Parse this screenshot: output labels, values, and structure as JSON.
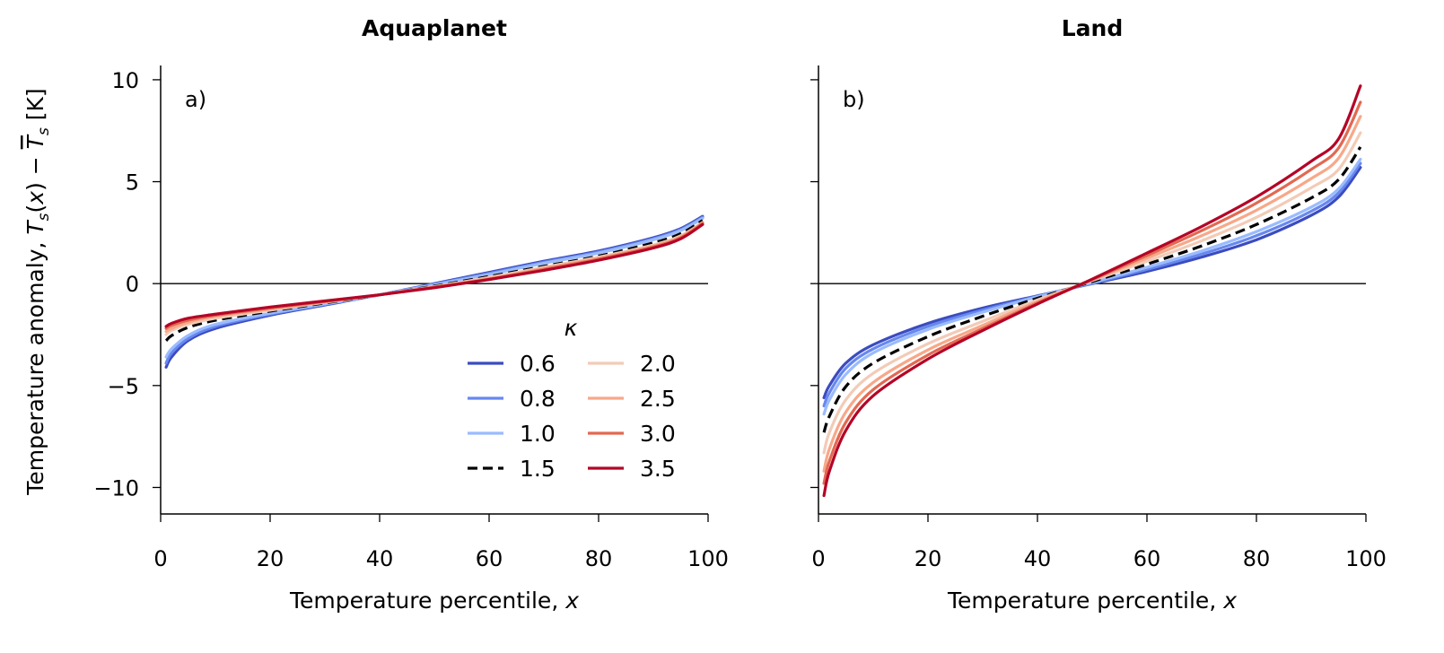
{
  "chart_data": [
    {
      "type": "line",
      "title": "Aquaplanet",
      "panel_label": "a)",
      "xlabel": "Temperature percentile, ",
      "xlabel_var": "x",
      "ylabel": "Temperature anomaly, T_s(x) − T̄_s [K]",
      "xlim": [
        0,
        100
      ],
      "ylim": [
        -11.3,
        10.7
      ],
      "xticks": [
        0,
        20,
        40,
        60,
        80,
        100
      ],
      "xtick_labels": [
        "0",
        "20",
        "40",
        "60",
        "80",
        "100"
      ],
      "yticks": [
        10,
        5,
        0,
        -5,
        -10
      ],
      "ytick_labels": [
        "10",
        "5",
        "0",
        "−5",
        "−10"
      ],
      "x": [
        1,
        2,
        5,
        10,
        20,
        30,
        40,
        50,
        60,
        70,
        80,
        90,
        95,
        99
      ],
      "series": [
        {
          "name": "0.6",
          "color": "#3b4cc0",
          "dash": false,
          "values": [
            -4.1,
            -3.6,
            -2.8,
            -2.2,
            -1.55,
            -1.05,
            -0.55,
            0.0,
            0.55,
            1.1,
            1.6,
            2.25,
            2.7,
            3.3
          ]
        },
        {
          "name": "0.8",
          "color": "#6788ee",
          "dash": false,
          "values": [
            -3.9,
            -3.4,
            -2.7,
            -2.1,
            -1.5,
            -1.02,
            -0.55,
            -0.03,
            0.5,
            1.05,
            1.55,
            2.2,
            2.65,
            3.25
          ]
        },
        {
          "name": "1.0",
          "color": "#9abbff",
          "dash": false,
          "values": [
            -3.6,
            -3.2,
            -2.55,
            -2.0,
            -1.45,
            -1.0,
            -0.55,
            -0.06,
            0.45,
            1.0,
            1.5,
            2.15,
            2.6,
            3.2
          ]
        },
        {
          "name": "1.5",
          "color": "#000000",
          "dash": true,
          "values": [
            -2.8,
            -2.55,
            -2.15,
            -1.8,
            -1.35,
            -0.95,
            -0.55,
            -0.12,
            0.35,
            0.85,
            1.35,
            2.0,
            2.45,
            3.1
          ]
        },
        {
          "name": "2.0",
          "color": "#f2cbb7",
          "dash": false,
          "values": [
            -2.5,
            -2.3,
            -2.0,
            -1.7,
            -1.3,
            -0.92,
            -0.55,
            -0.15,
            0.3,
            0.8,
            1.3,
            1.9,
            2.35,
            3.0
          ]
        },
        {
          "name": "2.5",
          "color": "#f7a889",
          "dash": false,
          "values": [
            -2.35,
            -2.2,
            -1.9,
            -1.6,
            -1.25,
            -0.9,
            -0.55,
            -0.17,
            0.25,
            0.75,
            1.25,
            1.85,
            2.3,
            3.0
          ]
        },
        {
          "name": "3.0",
          "color": "#e26952",
          "dash": false,
          "values": [
            -2.2,
            -2.05,
            -1.8,
            -1.55,
            -1.2,
            -0.88,
            -0.55,
            -0.18,
            0.22,
            0.7,
            1.2,
            1.8,
            2.25,
            2.95
          ]
        },
        {
          "name": "3.5",
          "color": "#b40426",
          "dash": false,
          "values": [
            -2.1,
            -1.95,
            -1.7,
            -1.5,
            -1.15,
            -0.85,
            -0.55,
            -0.2,
            0.2,
            0.65,
            1.15,
            1.75,
            2.2,
            2.9
          ]
        }
      ]
    },
    {
      "type": "line",
      "title": "Land",
      "panel_label": "b)",
      "xlabel": "Temperature percentile, ",
      "xlabel_var": "x",
      "xlim": [
        0,
        100
      ],
      "ylim": [
        -11.3,
        10.7
      ],
      "xticks": [
        0,
        20,
        40,
        60,
        80,
        100
      ],
      "xtick_labels": [
        "0",
        "20",
        "40",
        "60",
        "80",
        "100"
      ],
      "yticks": [
        10,
        5,
        0,
        -5,
        -10
      ],
      "x": [
        1,
        2,
        5,
        10,
        20,
        30,
        40,
        50,
        60,
        70,
        80,
        90,
        95,
        99
      ],
      "series": [
        {
          "name": "0.6",
          "color": "#3b4cc0",
          "dash": false,
          "values": [
            -5.6,
            -5.0,
            -3.9,
            -3.0,
            -1.95,
            -1.2,
            -0.6,
            0.0,
            0.6,
            1.3,
            2.15,
            3.35,
            4.25,
            5.7
          ]
        },
        {
          "name": "0.8",
          "color": "#6788ee",
          "dash": false,
          "values": [
            -6.0,
            -5.35,
            -4.15,
            -3.2,
            -2.1,
            -1.3,
            -0.62,
            0.02,
            0.7,
            1.45,
            2.35,
            3.55,
            4.45,
            5.9
          ]
        },
        {
          "name": "1.0",
          "color": "#9abbff",
          "dash": false,
          "values": [
            -6.4,
            -5.7,
            -4.45,
            -3.4,
            -2.25,
            -1.4,
            -0.65,
            0.05,
            0.8,
            1.6,
            2.55,
            3.75,
            4.65,
            6.1
          ]
        },
        {
          "name": "1.5",
          "color": "#000000",
          "dash": true,
          "values": [
            -7.3,
            -6.5,
            -5.05,
            -3.9,
            -2.6,
            -1.6,
            -0.72,
            0.1,
            0.95,
            1.85,
            2.9,
            4.2,
            5.1,
            6.7
          ]
        },
        {
          "name": "2.0",
          "color": "#f2cbb7",
          "dash": false,
          "values": [
            -8.3,
            -7.3,
            -5.7,
            -4.4,
            -2.95,
            -1.85,
            -0.8,
            0.15,
            1.1,
            2.1,
            3.25,
            4.7,
            5.6,
            7.4
          ]
        },
        {
          "name": "2.5",
          "color": "#f7a889",
          "dash": false,
          "values": [
            -9.2,
            -8.1,
            -6.3,
            -4.85,
            -3.25,
            -2.05,
            -0.88,
            0.18,
            1.25,
            2.35,
            3.6,
            5.15,
            6.15,
            8.2
          ]
        },
        {
          "name": "3.0",
          "color": "#e26952",
          "dash": false,
          "values": [
            -9.8,
            -8.7,
            -6.8,
            -5.2,
            -3.5,
            -2.2,
            -0.95,
            0.2,
            1.38,
            2.6,
            3.95,
            5.6,
            6.65,
            8.9
          ]
        },
        {
          "name": "3.5",
          "color": "#b40426",
          "dash": false,
          "values": [
            -10.4,
            -9.2,
            -7.2,
            -5.5,
            -3.7,
            -2.3,
            -1.0,
            0.22,
            1.5,
            2.8,
            4.25,
            6.0,
            7.1,
            9.7
          ]
        }
      ]
    }
  ],
  "legend": {
    "title": "κ",
    "location": "lower right of panel a",
    "entries": [
      "0.6",
      "0.8",
      "1.0",
      "1.5",
      "2.0",
      "2.5",
      "3.0",
      "3.5"
    ]
  }
}
